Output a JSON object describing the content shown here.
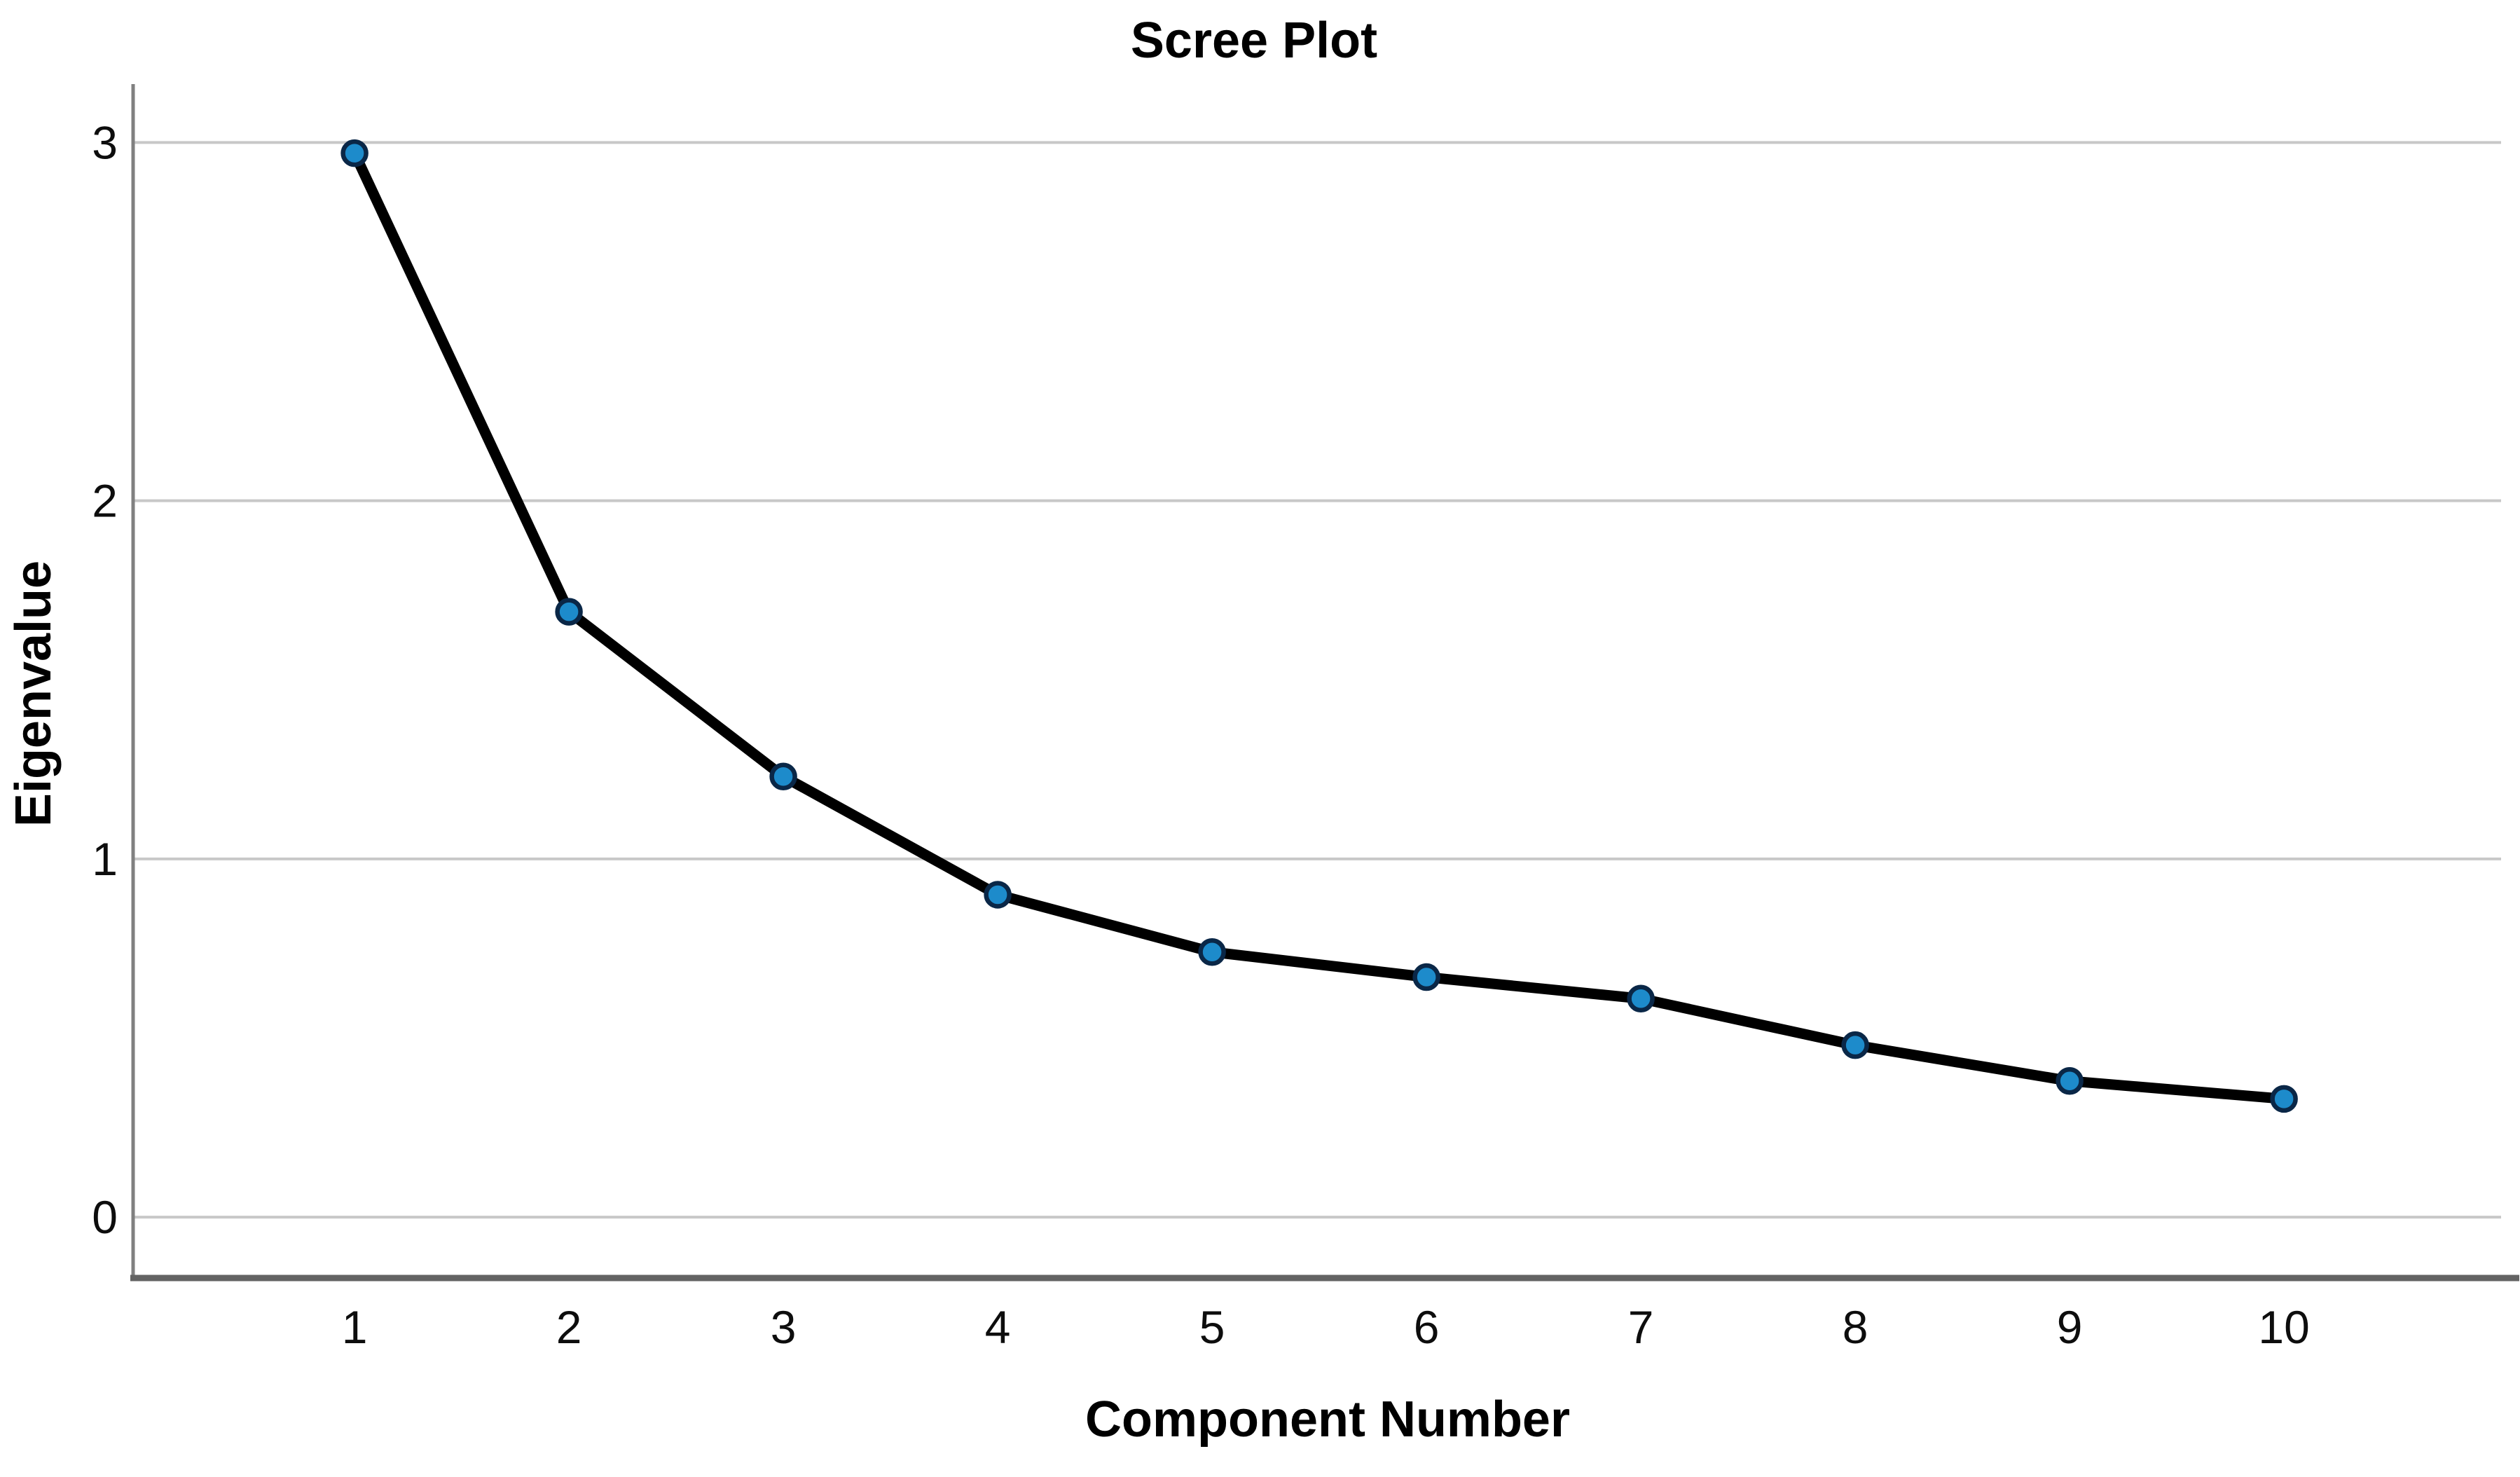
{
  "chart_data": {
    "type": "line",
    "title": "Scree Plot",
    "xlabel": "Component Number",
    "ylabel": "Eigenvalue",
    "x": [
      1,
      2,
      3,
      4,
      5,
      6,
      7,
      8,
      9,
      10
    ],
    "series": [
      {
        "name": "Eigenvalue",
        "values": [
          2.97,
          1.69,
          1.23,
          0.9,
          0.74,
          0.67,
          0.61,
          0.48,
          0.38,
          0.33
        ]
      }
    ],
    "xticks": [
      "1",
      "2",
      "3",
      "4",
      "5",
      "6",
      "7",
      "8",
      "9",
      "10"
    ],
    "yticks": [
      "0",
      "1",
      "2",
      "3"
    ],
    "ytick_values": [
      0,
      1,
      2,
      3
    ],
    "xlim": [
      -0.033,
      11.078
    ],
    "ylim": [
      -0.17,
      3.163
    ],
    "grid": "horizontal",
    "legend": "none",
    "marker": "circle",
    "colors": {
      "background": "#ffffff",
      "line": "#000000",
      "marker_fill": "#1d8bcb",
      "marker_stroke": "#0a2747",
      "gridline": "#c8c8c8",
      "y_axis": "#808080",
      "x_axis": "#636363",
      "text": "#000000"
    }
  }
}
